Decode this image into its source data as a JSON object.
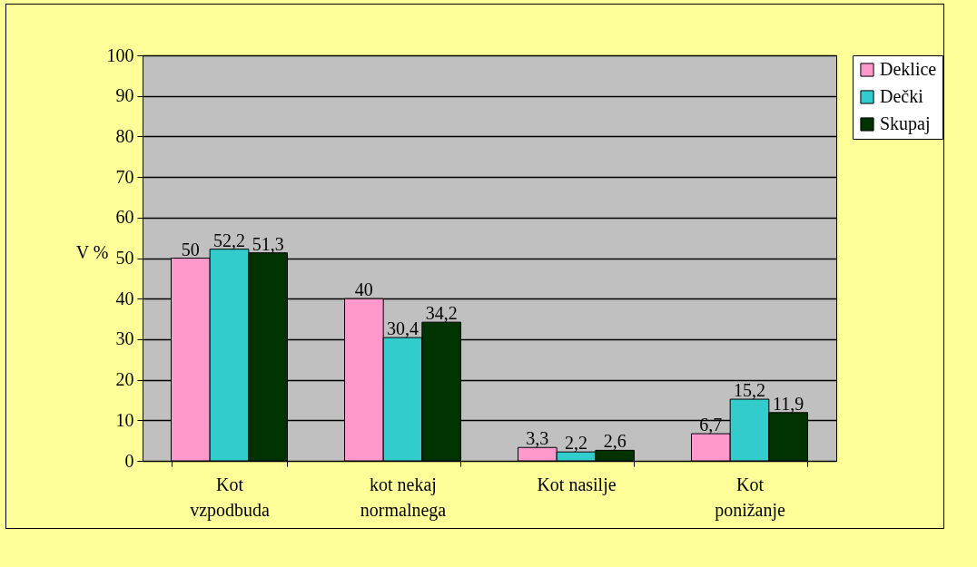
{
  "chart_data": {
    "type": "bar",
    "ylabel": "V %",
    "categories": [
      "Kot vzpodbuda",
      "kot nekaj normalnega",
      "Kot nasilje",
      "Kot ponižanje"
    ],
    "series": [
      {
        "name": "Deklice",
        "color": "#ff99cc",
        "values": [
          50,
          40,
          3.3,
          6.7
        ],
        "value_labels": [
          "50",
          "40",
          "3,3",
          "6,7"
        ]
      },
      {
        "name": "Dečki",
        "color": "#33cccc",
        "values": [
          52.2,
          30.4,
          2.2,
          15.2
        ],
        "value_labels": [
          "52,2",
          "30,4",
          "2,2",
          "15,2"
        ]
      },
      {
        "name": "Skupaj",
        "color": "#003300",
        "values": [
          51.3,
          34.2,
          2.6,
          11.9
        ],
        "value_labels": [
          "51,3",
          "34,2",
          "2,6",
          "11,9"
        ]
      }
    ],
    "ylim": [
      0,
      100
    ],
    "yticks": [
      0,
      10,
      20,
      30,
      40,
      50,
      60,
      70,
      80,
      90,
      100
    ],
    "grid": "y",
    "legend": "right"
  }
}
